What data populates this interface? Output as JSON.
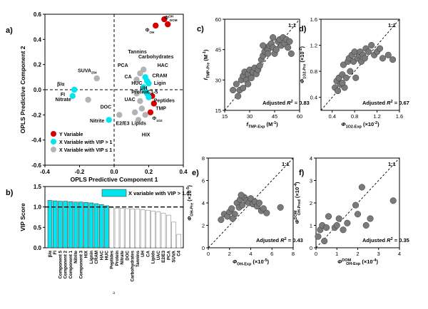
{
  "chart_data": [
    {
      "panel": "a)",
      "type": "scatter",
      "xlabel": "OPLS Predictive Component 1",
      "ylabel": "OPLS Predictive Component 2",
      "xlim": [
        -0.4,
        0.4
      ],
      "ylim": [
        -0.6,
        0.6
      ],
      "xticks": [
        "-0.4",
        "-0.2",
        "0.0",
        "0.2",
        "0.4"
      ],
      "yticks": [
        "-0.6",
        "-0.4",
        "-0.2",
        "0.0",
        "0.2",
        "0.4",
        "0.6"
      ],
      "legend": {
        "placement": "bottom-left",
        "items": [
          {
            "label": "Y Variable",
            "color": "#d40000"
          },
          {
            "label": "X Variable with VIP > 1",
            "color": "#00e5ee"
          },
          {
            "label": "X Variable with VIP ≤ 1",
            "color": "#b3b3b3"
          }
        ]
      },
      "points": [
        {
          "x": 0.29,
          "y": 0.56,
          "group": "y"
        },
        {
          "x": 0.24,
          "y": 0.51,
          "group": "y"
        },
        {
          "x": 0.31,
          "y": 0.52,
          "group": "y"
        },
        {
          "x": 0.22,
          "y": -0.05,
          "group": "y"
        },
        {
          "x": 0.23,
          "y": -0.11,
          "group": "y"
        },
        {
          "x": 0.21,
          "y": -0.18,
          "group": "y"
        },
        {
          "x": -0.23,
          "y": 0.0,
          "group": "vip_gt1"
        },
        {
          "x": -0.24,
          "y": -0.05,
          "group": "vip_gt1"
        },
        {
          "x": -0.03,
          "y": -0.24,
          "group": "vip_gt1"
        },
        {
          "x": 0.18,
          "y": 0.1,
          "group": "vip_gt1"
        },
        {
          "x": 0.19,
          "y": 0.07,
          "group": "vip_gt1"
        },
        {
          "x": 0.2,
          "y": 0.05,
          "group": "vip_gt1"
        },
        {
          "x": 0.17,
          "y": 0.02,
          "group": "vip_gt1"
        },
        {
          "x": 0.18,
          "y": -0.01,
          "group": "vip_gt1"
        },
        {
          "x": 0.19,
          "y": -0.03,
          "group": "vip_gt1"
        },
        {
          "x": 0.2,
          "y": -0.06,
          "group": "vip_gt1"
        },
        {
          "x": -0.1,
          "y": 0.09,
          "group": "vip_le1"
        },
        {
          "x": -0.15,
          "y": -0.08,
          "group": "vip_le1"
        },
        {
          "x": 0.03,
          "y": -0.2,
          "group": "vip_le1"
        },
        {
          "x": 0.13,
          "y": 0.08,
          "group": "vip_le1"
        },
        {
          "x": 0.15,
          "y": 0.13,
          "group": "vip_le1"
        },
        {
          "x": 0.17,
          "y": 0.16,
          "group": "vip_le1"
        },
        {
          "x": 0.13,
          "y": -0.03,
          "group": "vip_le1"
        },
        {
          "x": 0.15,
          "y": -0.09,
          "group": "vip_le1"
        },
        {
          "x": 0.16,
          "y": -0.15,
          "group": "vip_le1"
        },
        {
          "x": 0.12,
          "y": -0.18,
          "group": "vip_le1"
        },
        {
          "x": 0.14,
          "y": -0.24,
          "group": "vip_le1"
        },
        {
          "x": 0.18,
          "y": -0.2,
          "group": "vip_le1"
        }
      ],
      "point_labels": [
        {
          "text": "Φ",
          "sub": "DOM",
          "sup": "OH",
          "x": 0.29,
          "y": 0.56
        },
        {
          "text": "Φ",
          "sub": "OH",
          "x": 0.18,
          "y": 0.46
        },
        {
          "text": "Tannins",
          "x": 0.08,
          "y": 0.29
        },
        {
          "text": "Carbohydrates",
          "x": 0.14,
          "y": 0.25
        },
        {
          "text": "PCA",
          "x": 0.02,
          "y": 0.18
        },
        {
          "text": "HAC",
          "x": 0.25,
          "y": 0.18
        },
        {
          "text": "CA",
          "x": 0.06,
          "y": 0.09
        },
        {
          "text": "CRAM",
          "x": 0.22,
          "y": 0.1
        },
        {
          "text": "HUC",
          "x": 0.1,
          "y": 0.04
        },
        {
          "text": "Ligin",
          "x": 0.23,
          "y": 0.04
        },
        {
          "text": "UH",
          "x": 0.15,
          "y": 0.0
        },
        {
          "text": "Protein",
          "x": 0.1,
          "y": -0.03
        },
        {
          "text": "C1-5",
          "x": 0.19,
          "y": -0.03
        },
        {
          "text": "UAC",
          "x": 0.06,
          "y": -0.09
        },
        {
          "text": "Peptides",
          "x": 0.23,
          "y": -0.1
        },
        {
          "text": "DOC",
          "x": -0.08,
          "y": -0.15
        },
        {
          "text": "TMP",
          "x": 0.24,
          "y": -0.16
        },
        {
          "text": "Nitrite",
          "x": -0.14,
          "y": -0.26
        },
        {
          "text": "Φ",
          "sub": "1O2",
          "x": 0.22,
          "y": -0.24
        },
        {
          "text": "E2/E3",
          "x": 0.01,
          "y": -0.28
        },
        {
          "text": "Lipids",
          "x": 0.1,
          "y": -0.28
        },
        {
          "text": "HIX",
          "x": 0.16,
          "y": -0.37
        },
        {
          "text": "SUVA",
          "sub": "254",
          "x": -0.21,
          "y": 0.14
        },
        {
          "text": "β/α",
          "x": -0.33,
          "y": 0.03
        },
        {
          "text": "FI",
          "x": -0.31,
          "y": -0.05
        },
        {
          "text": "Nitrate",
          "x": -0.34,
          "y": -0.09
        }
      ]
    },
    {
      "panel": "b)",
      "type": "bar",
      "ylabel": "VIP Score",
      "ylim": [
        0.0,
        1.5
      ],
      "yticks": [
        "0.0",
        "0.5",
        "1.0",
        "1.5"
      ],
      "legend": {
        "label": "X variable with VIP > 1.0",
        "color": "#00e5ee"
      },
      "threshold": 1.0,
      "categories": [
        "β/α",
        "FI",
        "Component 5",
        "Component 2",
        "Component 1",
        "Nitrite",
        "Component 3",
        "HIX",
        "Lignin",
        "CRAM",
        "HAC",
        "HUC",
        "Peptides",
        "Protein",
        "Nitrate",
        "DOC",
        "Carbohydrates",
        "Tannins",
        "UH",
        "CA",
        "Lipids",
        "UAC",
        "E2/E3",
        "PCA",
        "SUVA",
        "C4"
      ],
      "values": [
        1.16,
        1.15,
        1.14,
        1.14,
        1.13,
        1.12,
        1.12,
        1.11,
        1.1,
        1.08,
        1.06,
        1.03,
        0.98,
        0.97,
        0.97,
        0.96,
        0.95,
        0.95,
        0.93,
        0.92,
        0.9,
        0.88,
        0.85,
        0.8,
        0.63,
        0.33
      ]
    },
    {
      "panel": "c)",
      "type": "scatter",
      "xlabel": "f",
      "xlabel_sub": "TMP-Exp",
      "xlabel_unit": " (M",
      "xlabel_unit_sup": "-1",
      "xlabel_unit_end": ")",
      "ylabel": "f",
      "ylabel_sub": "TMP-Pre",
      "ylabel_unit": " (M",
      "ylabel_unit_sup": "-1",
      "ylabel_unit_end": ")",
      "xlim": [
        15,
        60
      ],
      "ylim": [
        15,
        60
      ],
      "xticks": [
        "15",
        "30",
        "45",
        "60"
      ],
      "yticks": [
        "15",
        "30",
        "45",
        "60"
      ],
      "identity_label": "1:1",
      "annotation": {
        "prefix": "Adjusted ",
        "r": "R",
        "sup": "2",
        "value": " = 0.83"
      },
      "points": [
        [
          20,
          25
        ],
        [
          22,
          28
        ],
        [
          23,
          22
        ],
        [
          24,
          25
        ],
        [
          25,
          30
        ],
        [
          26,
          32
        ],
        [
          27,
          34
        ],
        [
          28,
          30
        ],
        [
          29,
          33
        ],
        [
          30,
          35
        ],
        [
          31,
          31
        ],
        [
          32,
          34
        ],
        [
          33,
          36
        ],
        [
          34,
          33
        ],
        [
          35,
          35
        ],
        [
          36,
          37
        ],
        [
          37,
          40
        ],
        [
          38,
          42
        ],
        [
          39,
          44
        ],
        [
          40,
          46
        ],
        [
          41,
          45
        ],
        [
          42,
          47
        ],
        [
          43,
          48
        ],
        [
          44,
          46
        ],
        [
          45,
          43
        ],
        [
          46,
          45
        ],
        [
          47,
          49
        ],
        [
          48,
          50
        ],
        [
          49,
          47
        ],
        [
          50,
          51
        ],
        [
          51,
          48
        ],
        [
          52,
          50
        ],
        [
          53,
          46
        ],
        [
          54,
          49
        ],
        [
          55,
          43
        ],
        [
          38,
          47
        ],
        [
          41,
          43
        ],
        [
          44,
          51
        ],
        [
          26,
          26
        ],
        [
          29,
          28
        ]
      ]
    },
    {
      "panel": "d)",
      "type": "scatter",
      "xlabel": "Φ",
      "xlabel_sub": "1O2-Exp",
      "xlabel_unit": " (×10",
      "xlabel_unit_sup": "-2",
      "xlabel_unit_end": ")",
      "ylabel": "Φ",
      "ylabel_sub": "1O2-Pre",
      "ylabel_unit": " (×10",
      "ylabel_unit_sup": "-2",
      "ylabel_unit_end": ")",
      "xlim": [
        0.2,
        1.6
      ],
      "ylim": [
        0.2,
        1.6
      ],
      "xticks": [
        "0.4",
        "0.8",
        "1.2",
        "1.6"
      ],
      "yticks": [
        "0.4",
        "0.8",
        "1.2",
        "1.6"
      ],
      "identity_label": "1:1",
      "annotation": {
        "prefix": "Adjusted ",
        "r": "R",
        "sup": "2",
        "value": " = 0.67"
      },
      "points": [
        [
          0.45,
          0.55
        ],
        [
          0.48,
          0.65
        ],
        [
          0.5,
          0.5
        ],
        [
          0.52,
          0.7
        ],
        [
          0.55,
          0.6
        ],
        [
          0.58,
          0.75
        ],
        [
          0.6,
          0.9
        ],
        [
          0.62,
          0.55
        ],
        [
          0.65,
          0.7
        ],
        [
          0.68,
          0.95
        ],
        [
          0.7,
          1.0
        ],
        [
          0.72,
          0.8
        ],
        [
          0.75,
          1.05
        ],
        [
          0.78,
          0.95
        ],
        [
          0.8,
          1.1
        ],
        [
          0.82,
          0.7
        ],
        [
          0.85,
          1.0
        ],
        [
          0.88,
          1.05
        ],
        [
          0.9,
          1.1
        ],
        [
          0.92,
          0.95
        ],
        [
          0.95,
          1.05
        ],
        [
          0.98,
          1.0
        ],
        [
          1.0,
          1.15
        ],
        [
          1.05,
          1.1
        ],
        [
          1.1,
          1.2
        ],
        [
          1.15,
          1.05
        ],
        [
          1.2,
          1.1
        ],
        [
          1.25,
          1.15
        ],
        [
          1.3,
          1.0
        ],
        [
          1.4,
          1.05
        ],
        [
          1.48,
          0.98
        ],
        [
          0.58,
          0.62
        ]
      ]
    },
    {
      "panel": "e)",
      "type": "scatter",
      "xlabel": "Φ",
      "xlabel_sub": "OH-Exp",
      "xlabel_unit": " (×10",
      "xlabel_unit_sup": "-5",
      "xlabel_unit_end": ")",
      "ylabel": "Φ",
      "ylabel_sub": "OH-Pre",
      "ylabel_unit": " (×10",
      "ylabel_unit_sup": "-5",
      "ylabel_unit_end": ")",
      "xlim": [
        0,
        8
      ],
      "ylim": [
        0,
        8
      ],
      "xticks": [
        "0",
        "2",
        "4",
        "6",
        "8"
      ],
      "yticks": [
        "0",
        "2",
        "4",
        "6",
        "8"
      ],
      "identity_label": "1:1",
      "annotation": {
        "prefix": "Adjusted ",
        "r": "R",
        "sup": "2",
        "value": " = 0.43"
      },
      "points": [
        [
          1.2,
          2.5
        ],
        [
          1.5,
          3.0
        ],
        [
          1.8,
          2.8
        ],
        [
          2.0,
          3.2
        ],
        [
          2.2,
          3.5
        ],
        [
          2.5,
          3.0
        ],
        [
          2.7,
          4.0
        ],
        [
          2.9,
          3.6
        ],
        [
          3.0,
          4.3
        ],
        [
          3.2,
          3.8
        ],
        [
          3.4,
          4.5
        ],
        [
          3.6,
          4.2
        ],
        [
          3.8,
          4.0
        ],
        [
          4.0,
          4.4
        ],
        [
          4.2,
          3.9
        ],
        [
          4.4,
          4.1
        ],
        [
          4.6,
          3.7
        ],
        [
          4.8,
          4.0
        ],
        [
          5.0,
          3.3
        ],
        [
          5.2,
          3.5
        ],
        [
          5.5,
          3.1
        ],
        [
          6.8,
          3.6
        ],
        [
          2.3,
          2.6
        ],
        [
          3.1,
          4.7
        ]
      ]
    },
    {
      "panel": "f)",
      "type": "scatter",
      "xlabel": "Φ",
      "xlabel_sup": "DOM",
      "xlabel_sub": "OH-Exp",
      "xlabel_unit": " (×10",
      "xlabel_unit_sup": "-4",
      "xlabel_unit_end": ")",
      "ylabel": "Φ",
      "ylabel_sup": "DOM",
      "ylabel_sub": "OH-Pred",
      "ylabel_unit": " (×10",
      "ylabel_unit_sup": "-4",
      "ylabel_unit_end": ")",
      "xlim": [
        0,
        4
      ],
      "ylim": [
        0,
        4
      ],
      "xticks": [
        "0",
        "1",
        "2",
        "3",
        "4"
      ],
      "yticks": [
        "0",
        "1",
        "2",
        "3",
        "4"
      ],
      "identity_label": "1:1",
      "annotation": {
        "prefix": "Adjusted ",
        "r": "R",
        "sup": "2",
        "value": " = 0.35"
      },
      "points": [
        [
          0.1,
          0.5
        ],
        [
          0.2,
          0.8
        ],
        [
          0.3,
          1.0
        ],
        [
          0.4,
          0.3
        ],
        [
          0.5,
          0.9
        ],
        [
          0.6,
          1.4
        ],
        [
          0.9,
          0.9
        ],
        [
          1.0,
          1.0
        ],
        [
          1.1,
          1.3
        ],
        [
          1.3,
          0.8
        ],
        [
          1.5,
          1.1
        ],
        [
          1.9,
          1.9
        ],
        [
          2.0,
          1.5
        ],
        [
          2.2,
          2.7
        ],
        [
          2.4,
          1.0
        ],
        [
          2.6,
          1.3
        ],
        [
          3.7,
          2.1
        ]
      ]
    }
  ],
  "stray_mark": "a"
}
